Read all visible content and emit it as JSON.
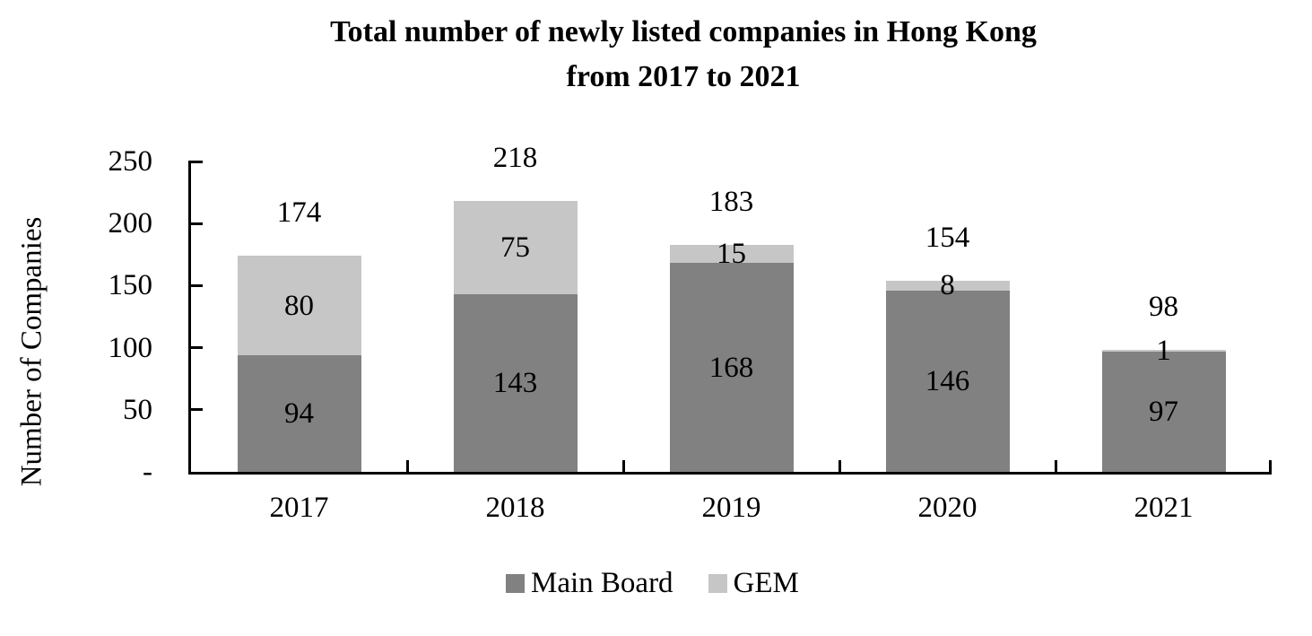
{
  "title": {
    "line1": "Total number of newly listed companies in Hong Kong",
    "line2": "from 2017 to 2021"
  },
  "y_axis": {
    "label": "Number of Companies",
    "ticks": [
      {
        "value": 250,
        "label": "250"
      },
      {
        "value": 200,
        "label": "200"
      },
      {
        "value": 150,
        "label": "150"
      },
      {
        "value": 100,
        "label": "100"
      },
      {
        "value": 50,
        "label": "50"
      },
      {
        "value": 0,
        "label": "-"
      }
    ]
  },
  "colors": {
    "main_board": "#818181",
    "gem": "#c6c6c6",
    "axis": "#000000"
  },
  "chart_data": {
    "type": "bar",
    "stacked": true,
    "title": "Total number of newly listed companies in Hong Kong from 2017 to 2021",
    "ylabel": "Number of Companies",
    "ylim": [
      0,
      250
    ],
    "ytick_step": 50,
    "ytick_labels_top_down": [
      "250",
      "200",
      "150",
      "100",
      "50",
      "-"
    ],
    "grid": false,
    "legend_position": "bottom",
    "categories": [
      "2017",
      "2018",
      "2019",
      "2020",
      "2021"
    ],
    "series": [
      {
        "name": "Main Board",
        "color": "#818181",
        "values": [
          94,
          143,
          168,
          146,
          97
        ]
      },
      {
        "name": "GEM",
        "color": "#c6c6c6",
        "values": [
          80,
          75,
          15,
          8,
          1
        ]
      }
    ],
    "totals": [
      174,
      218,
      183,
      154,
      98
    ]
  }
}
